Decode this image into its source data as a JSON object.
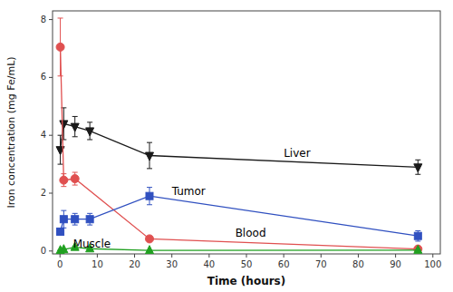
{
  "chart_data": {
    "type": "line",
    "x": [
      0.083,
      1,
      4,
      8,
      24,
      96
    ],
    "series": [
      {
        "color": "#1a1a1a",
        "marker": "triangle-down",
        "line_style": "solid",
        "values": [
          3.5,
          4.4,
          4.3,
          4.15,
          3.3,
          2.9
        ],
        "errors": [
          0.5,
          0.55,
          0.35,
          0.3,
          0.45,
          0.25
        ]
      },
      {
        "color": "#e05050",
        "marker": "circle",
        "line_style": "solid",
        "x": [
          0.083,
          1,
          4,
          24,
          96
        ],
        "values": [
          7.05,
          2.45,
          2.5,
          0.42,
          0.07
        ],
        "errors": [
          1.0,
          0.22,
          0.22,
          0.06,
          0.04
        ]
      },
      {
        "color": "#3050c0",
        "marker": "square",
        "line_style": "solid",
        "values": [
          0.67,
          1.1,
          1.1,
          1.1,
          1.9,
          0.52
        ],
        "errors": [
          0.1,
          0.3,
          0.2,
          0.2,
          0.3,
          0.18
        ]
      },
      {
        "color": "#20a020",
        "marker": "triangle-up",
        "line_style": "solid",
        "values": [
          0.02,
          0.05,
          0.13,
          0.08,
          0.02,
          0.03
        ],
        "errors": [
          0.01,
          0.02,
          0.04,
          0.03,
          0.01,
          0.01
        ]
      }
    ],
    "annotations": [
      {
        "text": "Liver",
        "x": 60,
        "y": 3.35
      },
      {
        "text": "Blood",
        "x": 47,
        "y": 0.62
      },
      {
        "text": "Tumor",
        "x": 30,
        "y": 2.05
      },
      {
        "text": "Muscle",
        "x": 3.5,
        "y": 0.22
      }
    ],
    "xlim": [
      -2,
      102
    ],
    "ylim": [
      -0.1,
      8.3
    ],
    "xticks": [
      0,
      10,
      20,
      30,
      40,
      50,
      60,
      70,
      80,
      90,
      100
    ],
    "yticks": [
      0,
      2,
      4,
      6,
      8
    ],
    "xlabel": "Time (hours)",
    "ylabel": "Iron concentration (mg Fe/mL)"
  }
}
